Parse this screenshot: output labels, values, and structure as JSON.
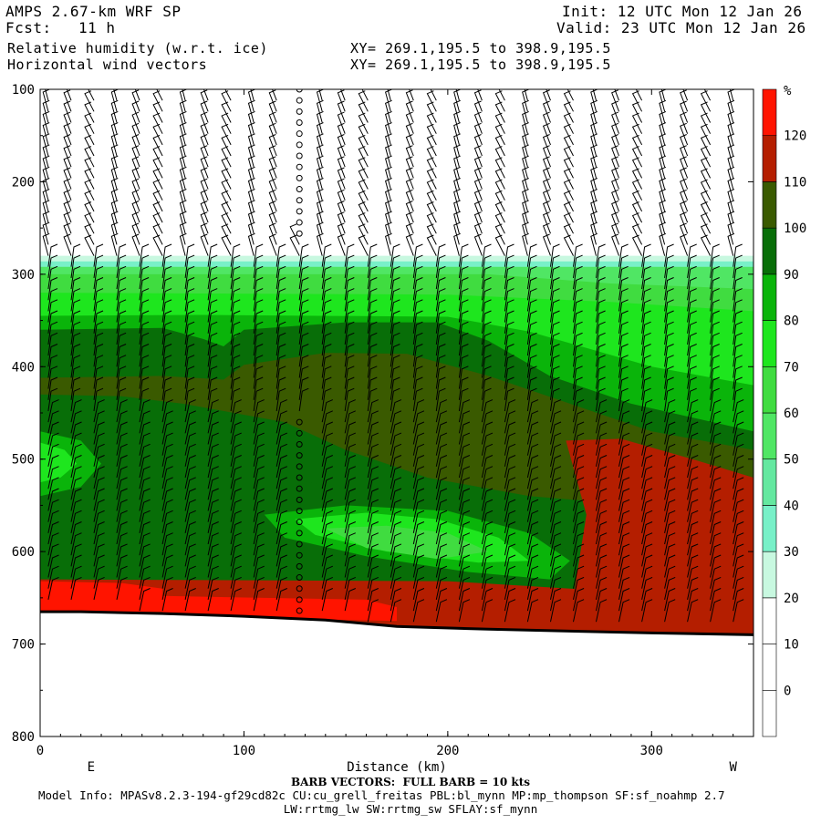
{
  "header": {
    "model": "AMPS 2.67-km WRF SP",
    "init": "Init: 12 UTC Mon 12 Jan 26",
    "fcst_label": "Fcst:",
    "fcst_value": "11 h",
    "valid": "Valid: 23 UTC Mon 12 Jan 26",
    "field1": "Relative humidity (w.r.t. ice)",
    "field2": "Horizontal wind vectors",
    "xy1": "XY= 269.1,195.5 to 398.9,195.5",
    "xy2": "XY= 269.1,195.5 to 398.9,195.5"
  },
  "footer": {
    "barb_note": "BARB VECTORS:  FULL BARB = 10 kts",
    "model_info": "Model Info: MPASv8.2.3-194-gf29cd82c CU:cu_grell_freitas PBL:bl_mynn MP:mp_thompson SF:sf_noahmp 2.7",
    "model_info2": "LW:rrtmg_lw SW:rrtmg_sw SFLAY:sf_mynn"
  },
  "colors": {
    "c0": "#ffffff",
    "c30": "#c8f8e0",
    "c40": "#78f0c8",
    "c50": "#64e8a0",
    "c60": "#50e664",
    "c70": "#40dc40",
    "c80": "#1ee61e",
    "c90": "#0ab40a",
    "c100": "#086e08",
    "c110": "#3a5a00",
    "c120": "#b41e00",
    "c130": "#ff1400"
  },
  "chart_data": {
    "type": "heatmap",
    "title": "Relative humidity (w.r.t. ice)",
    "xlabel": "Distance (km)",
    "ylabel": "",
    "x_ticks": [
      0,
      100,
      200,
      300
    ],
    "y_ticks": [
      100,
      200,
      300,
      400,
      500,
      600,
      700,
      800
    ],
    "xlim": [
      0,
      350
    ],
    "ylim": [
      800,
      100
    ],
    "x_end_labels": {
      "left": "E",
      "right": "W"
    },
    "colorbar": {
      "unit": "%",
      "levels": [
        0,
        10,
        20,
        30,
        40,
        50,
        60,
        70,
        80,
        90,
        100,
        110,
        120
      ]
    },
    "surface_pressure": [
      [
        0,
        665
      ],
      [
        20,
        665
      ],
      [
        60,
        667
      ],
      [
        100,
        670
      ],
      [
        140,
        674
      ],
      [
        175,
        681
      ],
      [
        220,
        684
      ],
      [
        260,
        686
      ],
      [
        300,
        688
      ],
      [
        350,
        690
      ]
    ],
    "rh_regions": [
      {
        "level": "above_110",
        "desc": "red/orange layer above surface",
        "x": [
          0,
          350
        ],
        "p": [
          630,
          690
        ]
      },
      {
        "level": "110-120",
        "desc": "dark red region on right",
        "x": [
          258,
          350
        ],
        "p": [
          480,
          690
        ]
      },
      {
        "level": "below_30",
        "desc": "dry upper region",
        "x": [
          0,
          350
        ],
        "p": [
          100,
          280
        ]
      }
    ],
    "wind_barbs": "horizontal wind barbs, full barb = 10 kts"
  }
}
